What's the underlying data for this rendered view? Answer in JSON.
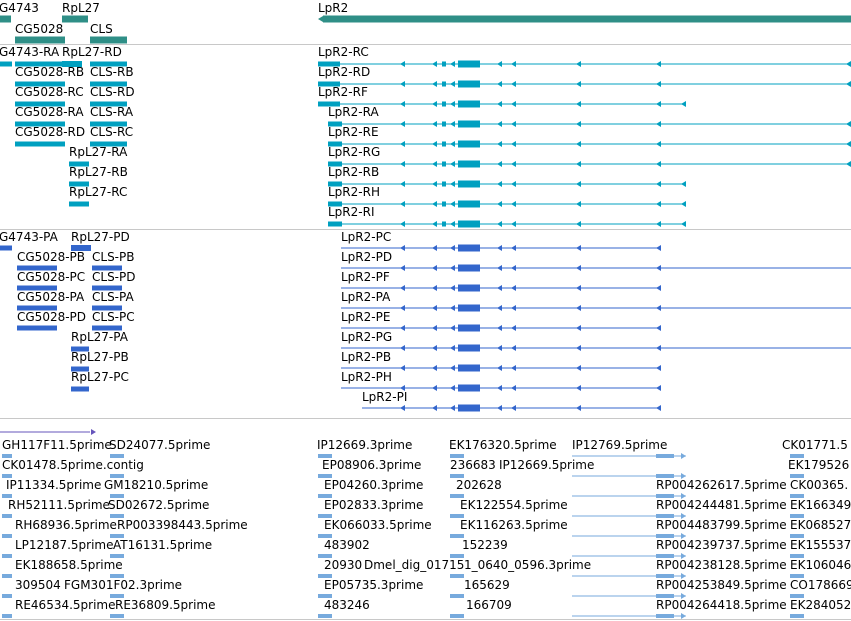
{
  "tracks": {
    "genes": {
      "items": [
        {
          "label": "G4743"
        },
        {
          "label": "RpL27"
        },
        {
          "label": "LpR2"
        },
        {
          "label": "CG5028"
        },
        {
          "label": "CLS"
        }
      ]
    },
    "transcripts_rna": {
      "items": [
        {
          "label": "G4743-RA"
        },
        {
          "label": "RpL27-RD"
        },
        {
          "label": "LpR2-RC"
        },
        {
          "label": "CG5028-RB"
        },
        {
          "label": "CLS-RB"
        },
        {
          "label": "LpR2-RD"
        },
        {
          "label": "CG5028-RC"
        },
        {
          "label": "CLS-RD"
        },
        {
          "label": "LpR2-RF"
        },
        {
          "label": "CG5028-RA"
        },
        {
          "label": "CLS-RA"
        },
        {
          "label": "LpR2-RA"
        },
        {
          "label": "CG5028-RD"
        },
        {
          "label": "CLS-RC"
        },
        {
          "label": "LpR2-RE"
        },
        {
          "label": "RpL27-RA"
        },
        {
          "label": "LpR2-RG"
        },
        {
          "label": "RpL27-RB"
        },
        {
          "label": "LpR2-RB"
        },
        {
          "label": "RpL27-RC"
        },
        {
          "label": "LpR2-RH"
        },
        {
          "label": "LpR2-RI"
        }
      ]
    },
    "proteins": {
      "items": [
        {
          "label": "G4743-PA"
        },
        {
          "label": "RpL27-PD"
        },
        {
          "label": "LpR2-PC"
        },
        {
          "label": "CG5028-PB"
        },
        {
          "label": "CLS-PB"
        },
        {
          "label": "LpR2-PD"
        },
        {
          "label": "CG5028-PC"
        },
        {
          "label": "CLS-PD"
        },
        {
          "label": "LpR2-PF"
        },
        {
          "label": "CG5028-PA"
        },
        {
          "label": "CLS-PA"
        },
        {
          "label": "LpR2-PA"
        },
        {
          "label": "CG5028-PD"
        },
        {
          "label": "CLS-PC"
        },
        {
          "label": "LpR2-PE"
        },
        {
          "label": "RpL27-PA"
        },
        {
          "label": "LpR2-PG"
        },
        {
          "label": "RpL27-PB"
        },
        {
          "label": "LpR2-PB"
        },
        {
          "label": "RpL27-PC"
        },
        {
          "label": "LpR2-PH"
        },
        {
          "label": "LpR2-PI"
        }
      ]
    },
    "ests": {
      "items": [
        {
          "label": "GH117F11.5prime"
        },
        {
          "label": "SD24077.5prime"
        },
        {
          "label": "IP12669.3prime"
        },
        {
          "label": "EK176320.5prime"
        },
        {
          "label": "IP12769.5prime"
        },
        {
          "label": "CK01771.5"
        },
        {
          "label": "CK01478.5prime.contig"
        },
        {
          "label": "EP08906.3prime"
        },
        {
          "label": "236683"
        },
        {
          "label": "IP12669.5prime"
        },
        {
          "label": "EK179526"
        },
        {
          "label": "IP11334.5prime"
        },
        {
          "label": "GM18210.5prime"
        },
        {
          "label": "EP04260.3prime"
        },
        {
          "label": "202628"
        },
        {
          "label": "RP004262617.5prime"
        },
        {
          "label": "CK00365."
        },
        {
          "label": "RH52111.5prime"
        },
        {
          "label": "SD02672.5prime"
        },
        {
          "label": "EP02833.3prime"
        },
        {
          "label": "EK122554.5prime"
        },
        {
          "label": "RP004244481.5prime"
        },
        {
          "label": "EK166349"
        },
        {
          "label": "RH68936.5prime"
        },
        {
          "label": "RP003398443.5prime"
        },
        {
          "label": "EK066033.5prime"
        },
        {
          "label": "EK116263.5prime"
        },
        {
          "label": "RP004483799.5prime"
        },
        {
          "label": "EK068527"
        },
        {
          "label": "LP12187.5prime"
        },
        {
          "label": "AT16131.5prime"
        },
        {
          "label": "483902"
        },
        {
          "label": "152239"
        },
        {
          "label": "RP004239737.5prime"
        },
        {
          "label": "EK155537"
        },
        {
          "label": "EK188658.5prime"
        },
        {
          "label": "20930"
        },
        {
          "label": "Dmel_dig_01715"
        },
        {
          "label": "1_0640_0596.3prime"
        },
        {
          "label": "RP004238128.5prime"
        },
        {
          "label": "EK106046"
        },
        {
          "label": "309504"
        },
        {
          "label": "FGM301F02.3prime"
        },
        {
          "label": "EP05735.3prime"
        },
        {
          "label": "165629"
        },
        {
          "label": "RP004253849.5prime"
        },
        {
          "label": "CO178669"
        },
        {
          "label": "RE46534.5prime"
        },
        {
          "label": "RE36809.5prime"
        },
        {
          "label": "483246"
        },
        {
          "label": "166709"
        },
        {
          "label": "RP004264418.5prime"
        },
        {
          "label": "EK284052"
        }
      ]
    }
  },
  "colors": {
    "gene": "#2f8f87",
    "transcript": "#00a0c0",
    "protein": "#3366cc",
    "est": "#77aadd",
    "misc": "#6655bb"
  }
}
